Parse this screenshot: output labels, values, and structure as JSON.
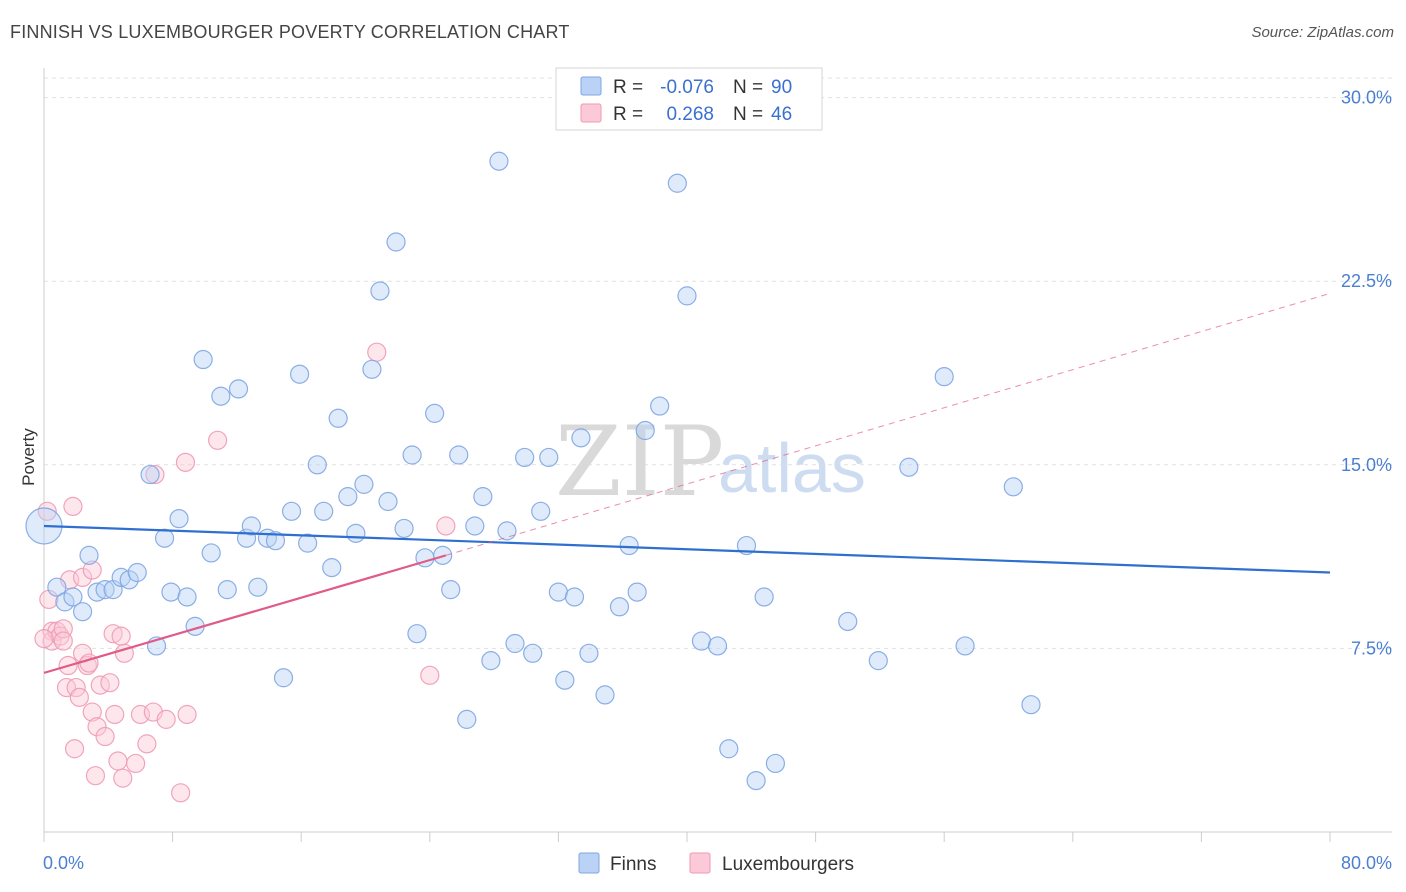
{
  "title": "FINNISH VS LUXEMBOURGER POVERTY CORRELATION CHART",
  "source": "Source: ZipAtlas.com",
  "chart_data": {
    "type": "scatter",
    "xlabel": "",
    "ylabel": "Poverty",
    "xlim": [
      0,
      80
    ],
    "ylim": [
      0,
      30.8
    ],
    "x_tick_labels": [
      "0.0%",
      "80.0%"
    ],
    "y_ticks": [
      7.5,
      15.0,
      22.5,
      30.0
    ],
    "y_tick_labels": [
      "7.5%",
      "15.0%",
      "22.5%",
      "30.0%"
    ],
    "grid": "horizontal dashed",
    "watermark": {
      "part1": "ZIP",
      "part2": "atlas"
    },
    "legend": {
      "placement": "top-center",
      "rows": [
        {
          "r_label": "R =",
          "r_value": "-0.076",
          "n_label": "N =",
          "n_value": "90"
        },
        {
          "r_label": "R =",
          "r_value": "0.268",
          "n_label": "N =",
          "n_value": "46"
        }
      ]
    },
    "series": [
      {
        "name": "Finns",
        "color": "#8fb4e8",
        "line_color": "#2f6fd0",
        "trend": {
          "x": [
            0,
            80
          ],
          "y": [
            12.5,
            10.6
          ],
          "style": "solid"
        },
        "points": [
          [
            0.0,
            12.5
          ],
          [
            0.8,
            10.0
          ],
          [
            1.3,
            9.4
          ],
          [
            1.8,
            9.6
          ],
          [
            2.4,
            9.0
          ],
          [
            2.8,
            11.3
          ],
          [
            3.3,
            9.8
          ],
          [
            3.8,
            9.9
          ],
          [
            4.3,
            9.9
          ],
          [
            4.8,
            10.4
          ],
          [
            5.3,
            10.3
          ],
          [
            5.8,
            10.6
          ],
          [
            6.6,
            14.6
          ],
          [
            7.0,
            7.6
          ],
          [
            7.5,
            12.0
          ],
          [
            7.9,
            9.8
          ],
          [
            8.4,
            12.8
          ],
          [
            8.9,
            9.6
          ],
          [
            9.4,
            8.4
          ],
          [
            9.9,
            19.3
          ],
          [
            10.4,
            11.4
          ],
          [
            11.0,
            17.8
          ],
          [
            11.4,
            9.9
          ],
          [
            12.1,
            18.1
          ],
          [
            12.6,
            12.0
          ],
          [
            12.9,
            12.5
          ],
          [
            13.3,
            10.0
          ],
          [
            13.9,
            12.0
          ],
          [
            14.4,
            11.9
          ],
          [
            14.9,
            6.3
          ],
          [
            15.4,
            13.1
          ],
          [
            15.9,
            18.7
          ],
          [
            16.4,
            11.8
          ],
          [
            17.0,
            15.0
          ],
          [
            17.4,
            13.1
          ],
          [
            17.9,
            10.8
          ],
          [
            18.3,
            16.9
          ],
          [
            18.9,
            13.7
          ],
          [
            19.4,
            12.2
          ],
          [
            19.9,
            14.2
          ],
          [
            20.4,
            18.9
          ],
          [
            20.9,
            22.1
          ],
          [
            21.4,
            13.5
          ],
          [
            21.9,
            24.1
          ],
          [
            22.4,
            12.4
          ],
          [
            22.9,
            15.4
          ],
          [
            23.2,
            8.1
          ],
          [
            23.7,
            11.2
          ],
          [
            24.3,
            17.1
          ],
          [
            24.8,
            11.3
          ],
          [
            25.3,
            9.9
          ],
          [
            25.8,
            15.4
          ],
          [
            26.3,
            4.6
          ],
          [
            26.8,
            12.5
          ],
          [
            27.3,
            13.7
          ],
          [
            27.8,
            7.0
          ],
          [
            28.3,
            27.4
          ],
          [
            28.8,
            12.3
          ],
          [
            29.3,
            7.7
          ],
          [
            29.9,
            15.3
          ],
          [
            30.4,
            7.3
          ],
          [
            30.9,
            13.1
          ],
          [
            31.4,
            15.3
          ],
          [
            32.0,
            9.8
          ],
          [
            32.4,
            6.2
          ],
          [
            33.0,
            9.6
          ],
          [
            33.4,
            16.1
          ],
          [
            33.9,
            7.3
          ],
          [
            34.9,
            5.6
          ],
          [
            35.8,
            9.2
          ],
          [
            36.4,
            11.7
          ],
          [
            36.9,
            9.8
          ],
          [
            37.4,
            16.4
          ],
          [
            38.3,
            17.4
          ],
          [
            39.4,
            26.5
          ],
          [
            40.0,
            21.9
          ],
          [
            40.9,
            7.8
          ],
          [
            41.9,
            7.6
          ],
          [
            42.6,
            3.4
          ],
          [
            43.7,
            11.7
          ],
          [
            44.3,
            2.1
          ],
          [
            44.8,
            9.6
          ],
          [
            45.5,
            2.8
          ],
          [
            50.0,
            8.6
          ],
          [
            51.9,
            7.0
          ],
          [
            53.8,
            14.9
          ],
          [
            56.0,
            18.6
          ],
          [
            57.3,
            7.6
          ],
          [
            60.3,
            14.1
          ],
          [
            61.4,
            5.2
          ]
        ]
      },
      {
        "name": "Luxembourgers",
        "color": "#f4a9c0",
        "line_color": "#e05a8a",
        "trend": {
          "x": [
            0,
            25
          ],
          "y": [
            6.5,
            11.3
          ],
          "style": "solid"
        },
        "trend_extension": {
          "x": [
            25,
            80
          ],
          "y": [
            11.3,
            22.0
          ],
          "style": "dashed"
        },
        "points": [
          [
            0.2,
            13.1
          ],
          [
            0.3,
            9.5
          ],
          [
            0.5,
            8.2
          ],
          [
            0.5,
            7.8
          ],
          [
            0.8,
            8.2
          ],
          [
            1.0,
            8.0
          ],
          [
            1.2,
            8.3
          ],
          [
            1.2,
            7.8
          ],
          [
            1.4,
            5.9
          ],
          [
            1.5,
            6.8
          ],
          [
            1.6,
            10.3
          ],
          [
            1.8,
            13.3
          ],
          [
            1.9,
            3.4
          ],
          [
            2.0,
            5.9
          ],
          [
            2.2,
            5.5
          ],
          [
            2.4,
            7.3
          ],
          [
            2.4,
            10.4
          ],
          [
            2.7,
            6.8
          ],
          [
            2.8,
            6.9
          ],
          [
            3.0,
            10.7
          ],
          [
            3.0,
            4.9
          ],
          [
            3.2,
            2.3
          ],
          [
            3.3,
            4.3
          ],
          [
            3.5,
            6.0
          ],
          [
            3.8,
            3.9
          ],
          [
            4.1,
            6.1
          ],
          [
            4.3,
            8.1
          ],
          [
            4.4,
            4.8
          ],
          [
            4.6,
            2.9
          ],
          [
            4.8,
            8.0
          ],
          [
            4.9,
            2.2
          ],
          [
            5.0,
            7.3
          ],
          [
            5.7,
            2.8
          ],
          [
            6.0,
            4.8
          ],
          [
            6.4,
            3.6
          ],
          [
            6.8,
            4.9
          ],
          [
            6.9,
            14.6
          ],
          [
            7.6,
            4.6
          ],
          [
            8.5,
            1.6
          ],
          [
            8.8,
            15.1
          ],
          [
            8.9,
            4.8
          ],
          [
            10.8,
            16.0
          ],
          [
            20.7,
            19.6
          ],
          [
            24.0,
            6.4
          ],
          [
            25.0,
            12.5
          ],
          [
            0.0,
            7.9
          ]
        ]
      }
    ]
  }
}
